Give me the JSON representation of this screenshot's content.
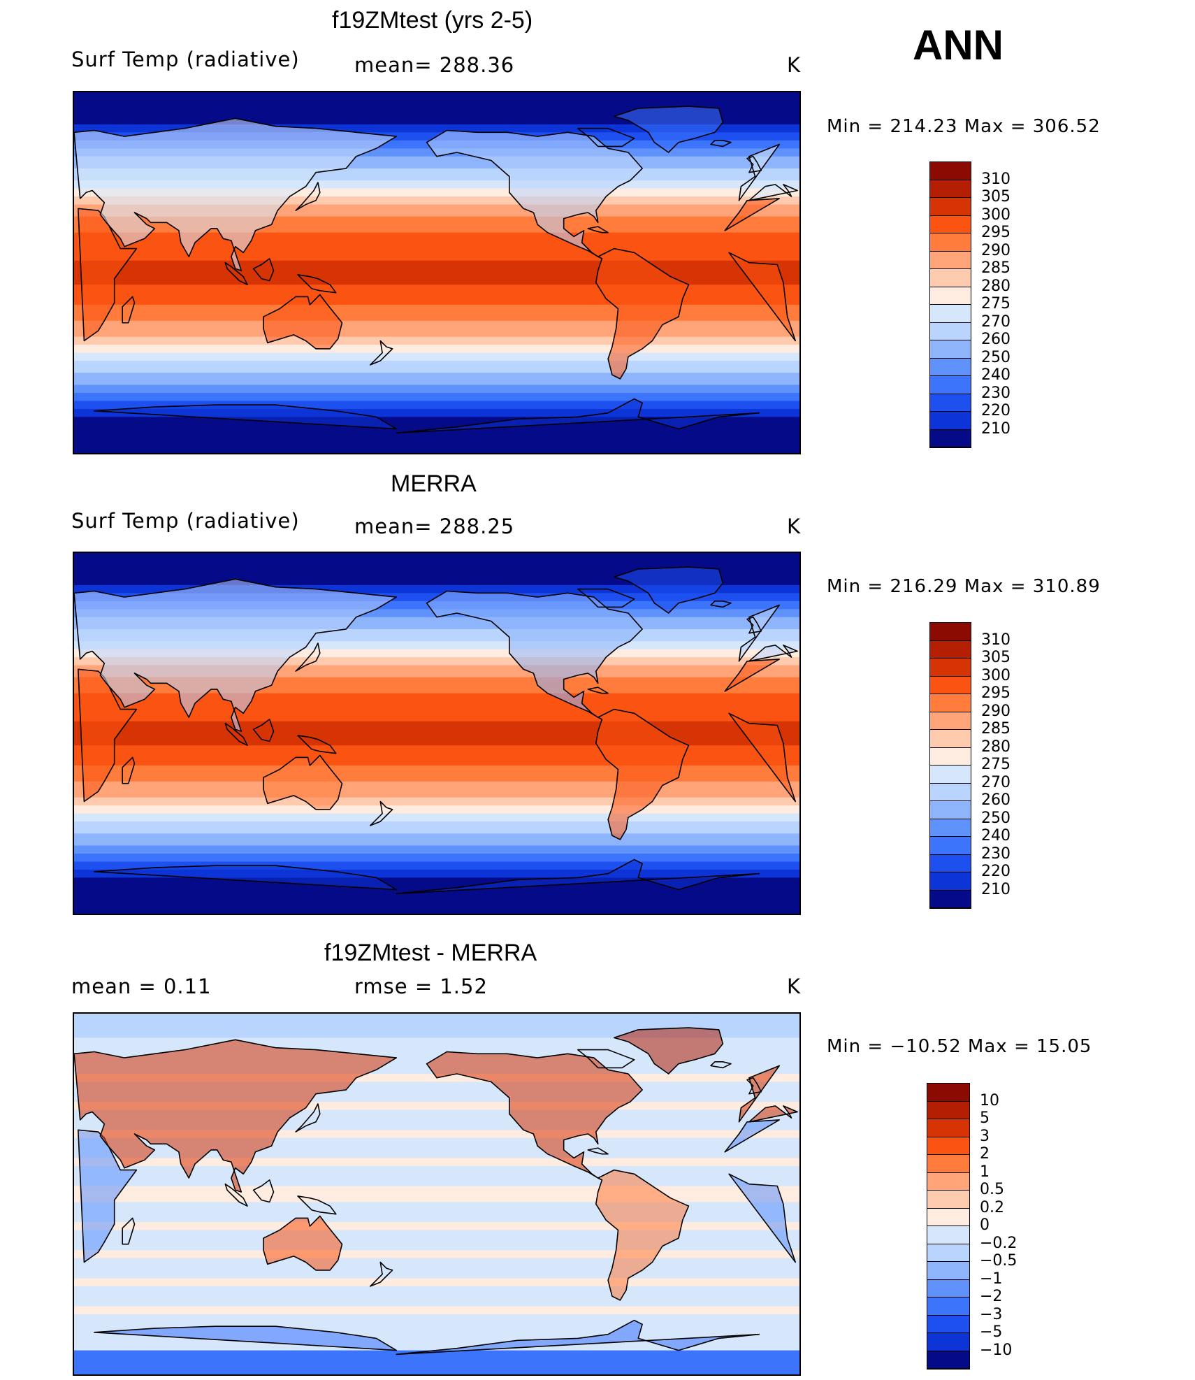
{
  "season": "ANN",
  "units": "K",
  "land_outline_color": "#000000",
  "chart_data": [
    {
      "type": "heatmap",
      "title": "f19ZMtest (yrs 2-5)",
      "variable": "Surf Temp (radiative)",
      "stat_text": "mean=  288.36",
      "units": "K",
      "min_max_text": "Min  =  214.23  Max  =  306.52",
      "min": 214.23,
      "max": 306.52,
      "mean": 288.36,
      "colorbar_ticks": [
        "310",
        "305",
        "300",
        "295",
        "290",
        "285",
        "280",
        "275",
        "270",
        "260",
        "250",
        "240",
        "230",
        "220",
        "210"
      ],
      "colorbar_colors": [
        "#8b0a02",
        "#b41f04",
        "#d73405",
        "#fb5312",
        "#ff7c3c",
        "#ffa478",
        "#ffcbae",
        "#ffece0",
        "#d6e7fc",
        "#b9d4fd",
        "#8eb4fc",
        "#5f92fb",
        "#3c74fb",
        "#1e50f0",
        "#0d34d7",
        "#050a88"
      ]
    },
    {
      "type": "heatmap",
      "title": "MERRA",
      "variable": "Surf Temp (radiative)",
      "stat_text": "mean=  288.25",
      "units": "K",
      "min_max_text": "Min  =  216.29  Max  =  310.89",
      "min": 216.29,
      "max": 310.89,
      "mean": 288.25,
      "colorbar_ticks": [
        "310",
        "305",
        "300",
        "295",
        "290",
        "285",
        "280",
        "275",
        "270",
        "260",
        "250",
        "240",
        "230",
        "220",
        "210"
      ],
      "colorbar_colors": [
        "#8b0a02",
        "#b41f04",
        "#d73405",
        "#fb5312",
        "#ff7c3c",
        "#ffa478",
        "#ffcbae",
        "#ffece0",
        "#d6e7fc",
        "#b9d4fd",
        "#8eb4fc",
        "#5f92fb",
        "#3c74fb",
        "#1e50f0",
        "#0d34d7",
        "#050a88"
      ]
    },
    {
      "type": "heatmap",
      "title": "f19ZMtest - MERRA",
      "variable": "mean =     0.11",
      "stat_text": "rmse  =     1.52",
      "units": "K",
      "min_max_text": "Min  =  −10.52  Max  =    15.05",
      "min": -10.52,
      "max": 15.05,
      "mean": 0.11,
      "rmse": 1.52,
      "colorbar_ticks": [
        "10",
        "5",
        "3",
        "2",
        "1",
        "0.5",
        "0.2",
        "0",
        "−0.2",
        "−0.5",
        "−1",
        "−2",
        "−3",
        "−5",
        "−10"
      ],
      "colorbar_colors": [
        "#8b0a02",
        "#b41f04",
        "#d73405",
        "#fb5312",
        "#ff7c3c",
        "#ffa478",
        "#ffcbae",
        "#ffece0",
        "#d6e7fc",
        "#b9d4fd",
        "#8eb4fc",
        "#5f92fb",
        "#3c74fb",
        "#1e50f0",
        "#0d34d7",
        "#050a88"
      ]
    }
  ]
}
